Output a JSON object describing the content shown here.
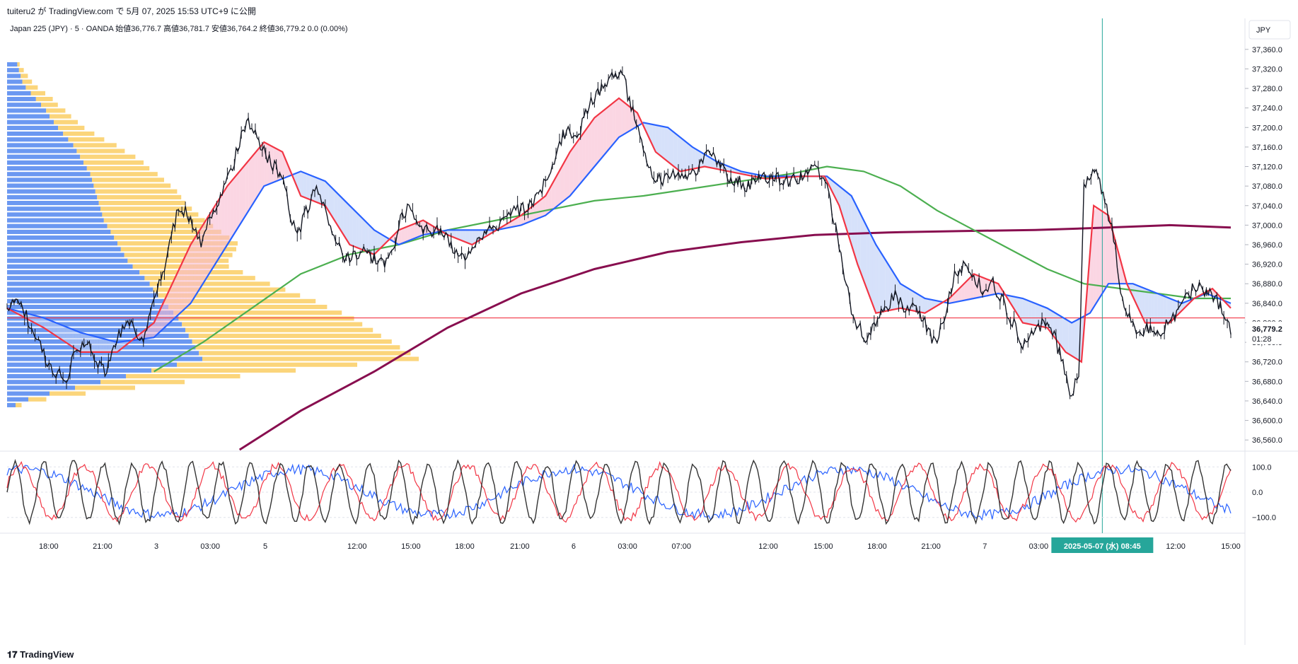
{
  "header": {
    "publish_line": "tuiteru2 が TradingView.com で 5月 07, 2025 15:53 UTC+9 に公開"
  },
  "legend": {
    "symbol_line": "Japan 225 (JPY) · 5 · OANDA  始値36,776.7  高値36,781.7  安値36,764.2  終値36,779.2  0.0 (0.00%)"
  },
  "currency": "JPY",
  "footer": {
    "brand": "TradingView"
  },
  "colors": {
    "candle": "#131722",
    "ema_fast": "#f23645",
    "ema_slow": "#2962ff",
    "sma_mid": "#4caf50",
    "sma_long": "#880e4f",
    "hline": "#f23645",
    "vline": "#26a69a",
    "vp_blue": "#5b8def",
    "vp_yellow": "#f9c74f",
    "osc_black": "#333333",
    "osc_red": "#f23645",
    "osc_blue": "#2962ff"
  },
  "chart_data": [
    {
      "type": "line",
      "name": "price",
      "ylim": [
        36540,
        37380
      ],
      "y_ticks": [
        36560,
        36600,
        36640,
        36680,
        36720,
        36760,
        36800,
        36840,
        36880,
        36920,
        36960,
        37000,
        37040,
        37080,
        37120,
        37160,
        37200,
        37240,
        37280,
        37320,
        37360
      ],
      "y_tick_labels": [
        "36,560.0",
        "36,600.0",
        "36,640.0",
        "36,680.0",
        "36,720.0",
        "36,760.0",
        "36,800.0",
        "36,840.0",
        "36,880.0",
        "36,920.0",
        "36,960.0",
        "37,000.0",
        "37,040.0",
        "37,080.0",
        "37,120.0",
        "37,160.0",
        "37,200.0",
        "37,240.0",
        "37,280.0",
        "37,320.0",
        "37,360.0"
      ],
      "x_ticks": [
        {
          "label": "18:00",
          "t": 0.034
        },
        {
          "label": "21:00",
          "t": 0.078
        },
        {
          "label": "3",
          "t": 0.122
        },
        {
          "label": "03:00",
          "t": 0.166
        },
        {
          "label": "5",
          "t": 0.211
        },
        {
          "label": "12:00",
          "t": 0.286
        },
        {
          "label": "15:00",
          "t": 0.33
        },
        {
          "label": "18:00",
          "t": 0.374
        },
        {
          "label": "21:00",
          "t": 0.419
        },
        {
          "label": "6",
          "t": 0.463
        },
        {
          "label": "03:00",
          "t": 0.507
        },
        {
          "label": "07:00",
          "t": 0.551
        },
        {
          "label": "12:00",
          "t": 0.622
        },
        {
          "label": "15:00",
          "t": 0.667
        },
        {
          "label": "18:00",
          "t": 0.711
        },
        {
          "label": "21:00",
          "t": 0.755
        },
        {
          "label": "7",
          "t": 0.799
        },
        {
          "label": "03:00",
          "t": 0.843
        },
        {
          "label": "12:00",
          "t": 0.955
        },
        {
          "label": "15:00",
          "t": 1.0
        }
      ],
      "cursor_time_label": "2025-05-07 (水)  08:45",
      "cursor_t": 0.895,
      "last_price": 36779.2,
      "last_price_label": "36,779.2",
      "countdown_label": "01:28",
      "hline_price": 36810,
      "price_path": [
        [
          0.0,
          36830
        ],
        [
          0.01,
          36845
        ],
        [
          0.018,
          36800
        ],
        [
          0.025,
          36770
        ],
        [
          0.032,
          36720
        ],
        [
          0.04,
          36700
        ],
        [
          0.048,
          36680
        ],
        [
          0.056,
          36740
        ],
        [
          0.064,
          36760
        ],
        [
          0.072,
          36730
        ],
        [
          0.08,
          36700
        ],
        [
          0.088,
          36760
        ],
        [
          0.096,
          36800
        ],
        [
          0.104,
          36790
        ],
        [
          0.112,
          36760
        ],
        [
          0.12,
          36850
        ],
        [
          0.128,
          36900
        ],
        [
          0.136,
          37000
        ],
        [
          0.142,
          37040
        ],
        [
          0.15,
          37010
        ],
        [
          0.158,
          36960
        ],
        [
          0.166,
          37020
        ],
        [
          0.174,
          37060
        ],
        [
          0.182,
          37100
        ],
        [
          0.19,
          37170
        ],
        [
          0.196,
          37210
        ],
        [
          0.202,
          37190
        ],
        [
          0.21,
          37150
        ],
        [
          0.218,
          37120
        ],
        [
          0.226,
          37100
        ],
        [
          0.232,
          37020
        ],
        [
          0.238,
          36980
        ],
        [
          0.246,
          37040
        ],
        [
          0.254,
          37080
        ],
        [
          0.262,
          37020
        ],
        [
          0.27,
          36960
        ],
        [
          0.276,
          36930
        ],
        [
          0.284,
          36940
        ],
        [
          0.292,
          36950
        ],
        [
          0.3,
          36930
        ],
        [
          0.308,
          36920
        ],
        [
          0.316,
          36960
        ],
        [
          0.322,
          37020
        ],
        [
          0.33,
          37040
        ],
        [
          0.338,
          37000
        ],
        [
          0.346,
          36980
        ],
        [
          0.354,
          36990
        ],
        [
          0.362,
          36960
        ],
        [
          0.37,
          36930
        ],
        [
          0.378,
          36950
        ],
        [
          0.386,
          36980
        ],
        [
          0.394,
          36990
        ],
        [
          0.402,
          37000
        ],
        [
          0.41,
          37020
        ],
        [
          0.418,
          37030
        ],
        [
          0.426,
          37040
        ],
        [
          0.434,
          37060
        ],
        [
          0.442,
          37100
        ],
        [
          0.45,
          37160
        ],
        [
          0.458,
          37200
        ],
        [
          0.466,
          37170
        ],
        [
          0.474,
          37240
        ],
        [
          0.482,
          37270
        ],
        [
          0.49,
          37290
        ],
        [
          0.498,
          37310
        ],
        [
          0.504,
          37300
        ],
        [
          0.51,
          37240
        ],
        [
          0.516,
          37200
        ],
        [
          0.522,
          37140
        ],
        [
          0.528,
          37100
        ],
        [
          0.534,
          37090
        ],
        [
          0.542,
          37100
        ],
        [
          0.55,
          37110
        ],
        [
          0.558,
          37100
        ],
        [
          0.566,
          37120
        ],
        [
          0.574,
          37150
        ],
        [
          0.582,
          37120
        ],
        [
          0.59,
          37100
        ],
        [
          0.598,
          37090
        ],
        [
          0.606,
          37080
        ],
        [
          0.614,
          37090
        ],
        [
          0.622,
          37100
        ],
        [
          0.63,
          37095
        ],
        [
          0.638,
          37090
        ],
        [
          0.646,
          37095
        ],
        [
          0.654,
          37110
        ],
        [
          0.662,
          37110
        ],
        [
          0.67,
          37080
        ],
        [
          0.678,
          36980
        ],
        [
          0.684,
          36900
        ],
        [
          0.69,
          36830
        ],
        [
          0.696,
          36790
        ],
        [
          0.702,
          36770
        ],
        [
          0.71,
          36800
        ],
        [
          0.718,
          36830
        ],
        [
          0.726,
          36860
        ],
        [
          0.734,
          36820
        ],
        [
          0.742,
          36830
        ],
        [
          0.75,
          36800
        ],
        [
          0.758,
          36760
        ],
        [
          0.766,
          36800
        ],
        [
          0.774,
          36900
        ],
        [
          0.782,
          36920
        ],
        [
          0.79,
          36900
        ],
        [
          0.798,
          36860
        ],
        [
          0.806,
          36880
        ],
        [
          0.814,
          36840
        ],
        [
          0.822,
          36800
        ],
        [
          0.83,
          36760
        ],
        [
          0.838,
          36780
        ],
        [
          0.846,
          36800
        ],
        [
          0.854,
          36790
        ],
        [
          0.862,
          36720
        ],
        [
          0.87,
          36650
        ],
        [
          0.876,
          36700
        ],
        [
          0.88,
          37080
        ],
        [
          0.886,
          37100
        ],
        [
          0.892,
          37100
        ],
        [
          0.898,
          37040
        ],
        [
          0.904,
          36980
        ],
        [
          0.91,
          36860
        ],
        [
          0.918,
          36800
        ],
        [
          0.926,
          36780
        ],
        [
          0.934,
          36790
        ],
        [
          0.942,
          36780
        ],
        [
          0.95,
          36800
        ],
        [
          0.958,
          36830
        ],
        [
          0.966,
          36860
        ],
        [
          0.974,
          36880
        ],
        [
          0.982,
          36860
        ],
        [
          0.99,
          36840
        ],
        [
          1.0,
          36779
        ]
      ],
      "ema_fast_path": [
        [
          0.0,
          36830
        ],
        [
          0.03,
          36790
        ],
        [
          0.06,
          36740
        ],
        [
          0.09,
          36740
        ],
        [
          0.12,
          36800
        ],
        [
          0.15,
          36960
        ],
        [
          0.18,
          37080
        ],
        [
          0.21,
          37170
        ],
        [
          0.225,
          37150
        ],
        [
          0.24,
          37060
        ],
        [
          0.26,
          37040
        ],
        [
          0.28,
          36960
        ],
        [
          0.3,
          36940
        ],
        [
          0.32,
          36990
        ],
        [
          0.34,
          37010
        ],
        [
          0.36,
          36980
        ],
        [
          0.38,
          36960
        ],
        [
          0.4,
          36990
        ],
        [
          0.42,
          37020
        ],
        [
          0.44,
          37060
        ],
        [
          0.46,
          37150
        ],
        [
          0.48,
          37220
        ],
        [
          0.5,
          37260
        ],
        [
          0.515,
          37230
        ],
        [
          0.53,
          37150
        ],
        [
          0.55,
          37110
        ],
        [
          0.57,
          37120
        ],
        [
          0.59,
          37110
        ],
        [
          0.62,
          37095
        ],
        [
          0.65,
          37100
        ],
        [
          0.668,
          37100
        ],
        [
          0.68,
          37040
        ],
        [
          0.695,
          36920
        ],
        [
          0.71,
          36820
        ],
        [
          0.73,
          36830
        ],
        [
          0.75,
          36820
        ],
        [
          0.77,
          36850
        ],
        [
          0.79,
          36900
        ],
        [
          0.81,
          36880
        ],
        [
          0.83,
          36800
        ],
        [
          0.85,
          36790
        ],
        [
          0.865,
          36740
        ],
        [
          0.878,
          36720
        ],
        [
          0.888,
          37040
        ],
        [
          0.9,
          37020
        ],
        [
          0.915,
          36880
        ],
        [
          0.93,
          36800
        ],
        [
          0.95,
          36800
        ],
        [
          0.97,
          36850
        ],
        [
          0.985,
          36870
        ],
        [
          1.0,
          36830
        ]
      ],
      "ema_slow_path": [
        [
          0.0,
          36830
        ],
        [
          0.03,
          36810
        ],
        [
          0.06,
          36780
        ],
        [
          0.09,
          36760
        ],
        [
          0.12,
          36770
        ],
        [
          0.15,
          36840
        ],
        [
          0.18,
          36960
        ],
        [
          0.21,
          37080
        ],
        [
          0.24,
          37110
        ],
        [
          0.26,
          37090
        ],
        [
          0.28,
          37040
        ],
        [
          0.3,
          36990
        ],
        [
          0.32,
          36960
        ],
        [
          0.34,
          36980
        ],
        [
          0.36,
          36990
        ],
        [
          0.38,
          36990
        ],
        [
          0.4,
          36990
        ],
        [
          0.42,
          37000
        ],
        [
          0.44,
          37020
        ],
        [
          0.46,
          37060
        ],
        [
          0.48,
          37120
        ],
        [
          0.5,
          37180
        ],
        [
          0.52,
          37210
        ],
        [
          0.54,
          37200
        ],
        [
          0.56,
          37160
        ],
        [
          0.58,
          37130
        ],
        [
          0.6,
          37110
        ],
        [
          0.62,
          37100
        ],
        [
          0.65,
          37100
        ],
        [
          0.67,
          37100
        ],
        [
          0.69,
          37060
        ],
        [
          0.71,
          36960
        ],
        [
          0.73,
          36880
        ],
        [
          0.75,
          36850
        ],
        [
          0.77,
          36840
        ],
        [
          0.79,
          36850
        ],
        [
          0.81,
          36860
        ],
        [
          0.83,
          36850
        ],
        [
          0.85,
          36830
        ],
        [
          0.87,
          36800
        ],
        [
          0.885,
          36820
        ],
        [
          0.9,
          36880
        ],
        [
          0.92,
          36880
        ],
        [
          0.94,
          36860
        ],
        [
          0.96,
          36840
        ],
        [
          0.98,
          36860
        ],
        [
          1.0,
          36840
        ]
      ],
      "sma_mid_path": [
        [
          0.12,
          36700
        ],
        [
          0.16,
          36760
        ],
        [
          0.2,
          36830
        ],
        [
          0.24,
          36900
        ],
        [
          0.28,
          36940
        ],
        [
          0.32,
          36960
        ],
        [
          0.36,
          36990
        ],
        [
          0.4,
          37010
        ],
        [
          0.44,
          37030
        ],
        [
          0.48,
          37050
        ],
        [
          0.52,
          37060
        ],
        [
          0.56,
          37075
        ],
        [
          0.6,
          37090
        ],
        [
          0.64,
          37105
        ],
        [
          0.67,
          37120
        ],
        [
          0.7,
          37110
        ],
        [
          0.73,
          37080
        ],
        [
          0.76,
          37030
        ],
        [
          0.79,
          36990
        ],
        [
          0.82,
          36950
        ],
        [
          0.85,
          36910
        ],
        [
          0.88,
          36880
        ],
        [
          0.91,
          36870
        ],
        [
          0.94,
          36860
        ],
        [
          0.97,
          36850
        ],
        [
          1.0,
          36850
        ]
      ],
      "sma_long_path": [
        [
          0.19,
          36540
        ],
        [
          0.24,
          36620
        ],
        [
          0.3,
          36700
        ],
        [
          0.36,
          36790
        ],
        [
          0.42,
          36860
        ],
        [
          0.48,
          36910
        ],
        [
          0.54,
          36945
        ],
        [
          0.6,
          36965
        ],
        [
          0.66,
          36980
        ],
        [
          0.72,
          36985
        ],
        [
          0.78,
          36988
        ],
        [
          0.84,
          36990
        ],
        [
          0.9,
          36995
        ],
        [
          0.95,
          37000
        ],
        [
          1.0,
          36995
        ]
      ],
      "volume_profile": {
        "rows": 60,
        "blue": [
          12,
          14,
          16,
          18,
          22,
          28,
          34,
          40,
          46,
          50,
          55,
          60,
          66,
          72,
          78,
          82,
          86,
          90,
          94,
          98,
          100,
          102,
          104,
          106,
          108,
          110,
          112,
          114,
          118,
          122,
          126,
          130,
          134,
          138,
          142,
          148,
          156,
          162,
          168,
          172,
          178,
          185,
          190,
          196,
          202,
          206,
          210,
          214,
          218,
          222,
          226,
          230,
          200,
          170,
          140,
          110,
          80,
          50,
          25,
          10
        ],
        "yellow": [
          2,
          4,
          6,
          8,
          10,
          12,
          14,
          14,
          16,
          18,
          20,
          22,
          26,
          30,
          36,
          40,
          46,
          50,
          52,
          56,
          60,
          64,
          68,
          70,
          72,
          76,
          80,
          84,
          88,
          92,
          96,
          100,
          96,
          90,
          84,
          80,
          86,
          92,
          100,
          110,
          118,
          126,
          132,
          140,
          146,
          150,
          156,
          160,
          166,
          170,
          176,
          180,
          150,
          120,
          95,
          70,
          50,
          30,
          15,
          5
        ]
      }
    },
    {
      "type": "line",
      "name": "oscillator",
      "ylim": [
        -140,
        140
      ],
      "y_ticks": [
        100,
        0,
        -100
      ],
      "y_tick_labels": [
        "100.0",
        "0.0",
        "−100.0"
      ]
    }
  ]
}
